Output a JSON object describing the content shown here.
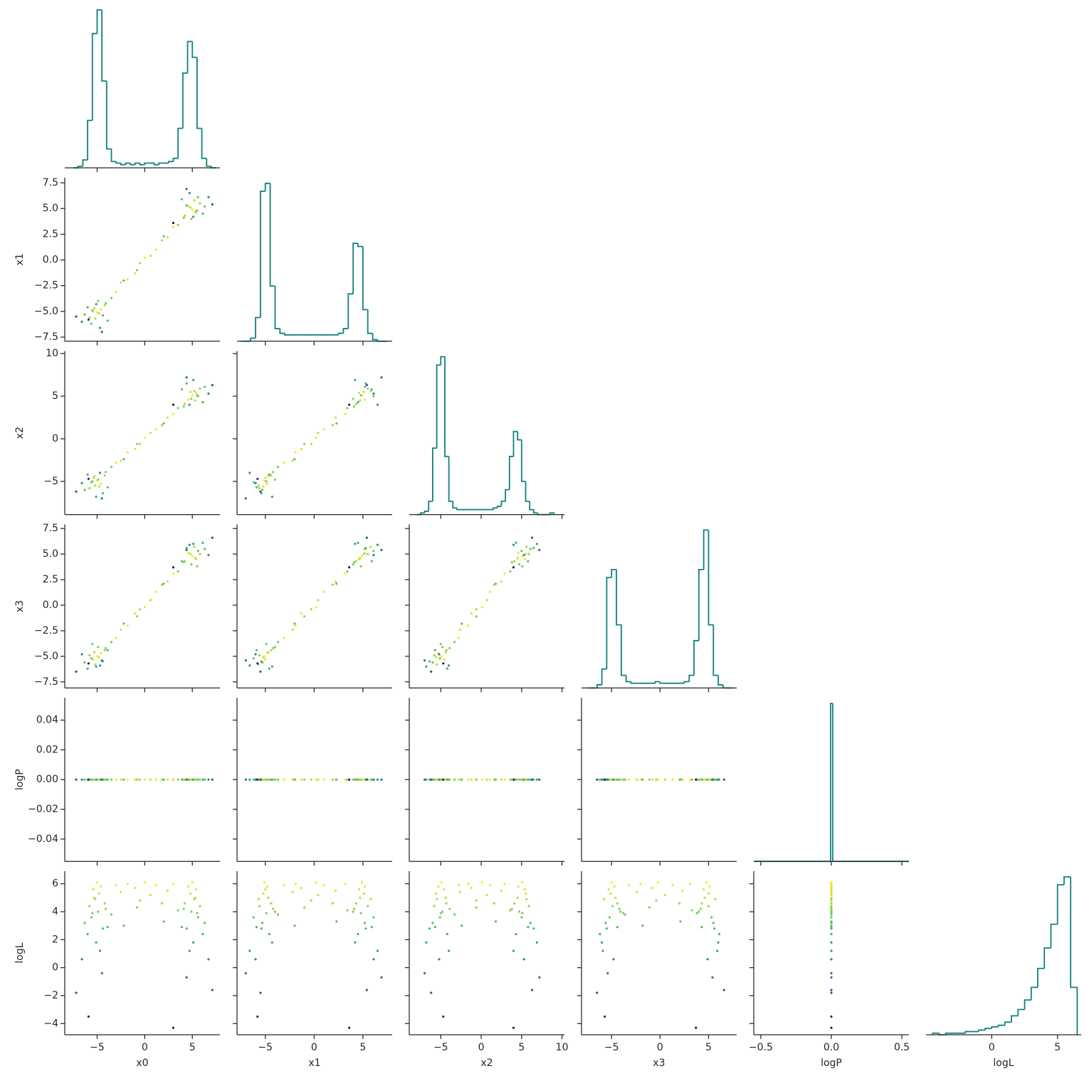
{
  "chart_data": {
    "type": "corner",
    "hist_color": "#11807f",
    "colormap": "viridis",
    "color_by": "logL",
    "variables": [
      {
        "name": "x0",
        "lim": [
          -8.4,
          7.9
        ],
        "xticks": [
          {
            "value": -5,
            "label": "−5"
          },
          0,
          5
        ],
        "yticks": [],
        "hist": {
          "bins": [
            -7.5,
            -7,
            -6.5,
            -6,
            -5.5,
            -5,
            -4.5,
            -4,
            -3.5,
            -3,
            -2.5,
            -2,
            -1.5,
            -1,
            -0.5,
            0,
            0.5,
            1,
            1.5,
            2,
            2.5,
            3,
            3.5,
            4,
            4.5,
            5,
            5.5,
            6,
            6.5,
            7,
            7.5
          ],
          "counts": [
            0,
            1,
            5,
            30,
            85,
            100,
            55,
            12,
            4,
            3,
            2,
            3,
            2,
            3,
            2,
            3,
            3,
            2,
            3,
            3,
            4,
            6,
            25,
            60,
            80,
            70,
            25,
            6,
            1,
            0
          ]
        }
      },
      {
        "name": "x1",
        "lim": [
          -7.9,
          8.0
        ],
        "xticks": [
          {
            "value": -5,
            "label": "−5"
          },
          0,
          5
        ],
        "yticks": [
          {
            "value": -7.5,
            "label": "−7.5"
          },
          {
            "value": -5,
            "label": "−5.0"
          },
          {
            "value": -2.5,
            "label": "−2.5"
          },
          {
            "value": 0,
            "label": "0.0"
          },
          2.5,
          {
            "value": 5,
            "label": "5.0"
          },
          7.5
        ],
        "hist": {
          "bins": [
            -7.5,
            -7,
            -6.5,
            -6,
            -5.5,
            -5,
            -4.5,
            -4,
            -3.5,
            -3,
            -2.5,
            -2,
            -1.5,
            -1,
            -0.5,
            0,
            0.5,
            1,
            1.5,
            2,
            2.5,
            3,
            3.5,
            4,
            4.5,
            5,
            5.5,
            6,
            6.5,
            7,
            7.5
          ],
          "counts": [
            0,
            0,
            2,
            15,
            95,
            100,
            35,
            8,
            5,
            4,
            4,
            4,
            4,
            4,
            4,
            4,
            4,
            4,
            4,
            4,
            5,
            8,
            30,
            62,
            60,
            20,
            5,
            1,
            0,
            0
          ]
        }
      },
      {
        "name": "x2",
        "lim": [
          -8.9,
          10.3
        ],
        "xticks": [
          {
            "value": -5,
            "label": "−5"
          },
          0,
          5,
          10
        ],
        "yticks": [
          {
            "value": -5,
            "label": "−5"
          },
          0,
          5,
          10
        ],
        "hist": {
          "bins": [
            -8,
            -7.5,
            -7,
            -6.5,
            -6,
            -5.5,
            -5,
            -4.5,
            -4,
            -3.5,
            -3,
            -2.5,
            -2,
            -1.5,
            -1,
            -0.5,
            0,
            0.5,
            1,
            1.5,
            2,
            2.5,
            3,
            3.5,
            4,
            4.5,
            5,
            5.5,
            6,
            6.5,
            7,
            7.5,
            8,
            8.5,
            9
          ],
          "counts": [
            0,
            1,
            2,
            8,
            40,
            90,
            95,
            35,
            8,
            4,
            3,
            3,
            3,
            3,
            3,
            3,
            3,
            3,
            3,
            4,
            5,
            8,
            15,
            35,
            50,
            45,
            20,
            8,
            3,
            1,
            0,
            0,
            0,
            1
          ]
        }
      },
      {
        "name": "x3",
        "lim": [
          -8.1,
          7.9
        ],
        "xticks": [
          {
            "value": -5,
            "label": "−5"
          },
          0,
          5
        ],
        "yticks": [
          {
            "value": -7.5,
            "label": "−7.5"
          },
          {
            "value": -5,
            "label": "−5.0"
          },
          {
            "value": -2.5,
            "label": "−2.5"
          },
          {
            "value": 0,
            "label": "0.0"
          },
          2.5,
          {
            "value": 5,
            "label": "5.0"
          },
          7.5
        ],
        "hist": {
          "bins": [
            -7.5,
            -7,
            -6.5,
            -6,
            -5.5,
            -5,
            -4.5,
            -4,
            -3.5,
            -3,
            -2.5,
            -2,
            -1.5,
            -1,
            -0.5,
            0,
            0.5,
            1,
            1.5,
            2,
            2.5,
            3,
            3.5,
            4,
            4.5,
            5,
            5.5,
            6,
            6.5,
            7,
            7.5
          ],
          "counts": [
            0,
            0,
            2,
            12,
            70,
            75,
            40,
            8,
            4,
            3,
            3,
            3,
            3,
            3,
            4,
            3,
            3,
            3,
            3,
            3,
            4,
            8,
            30,
            75,
            100,
            40,
            8,
            2,
            0,
            0
          ]
        }
      },
      {
        "name": "logP",
        "lim": [
          -0.55,
          0.55
        ],
        "xticks": [
          {
            "value": -0.5,
            "label": "−0.5"
          },
          {
            "value": 0,
            "label": "0.0"
          },
          0.5
        ],
        "ylim": [
          -0.055,
          0.055
        ],
        "yticks": [
          {
            "value": -0.04,
            "label": "−0.04"
          },
          {
            "value": -0.02,
            "label": "−0.02"
          },
          {
            "value": 0,
            "label": "0.00"
          },
          0.02,
          0.04
        ],
        "hist": {
          "bins": [
            -0.55,
            -0.005,
            0.01,
            0.55
          ],
          "counts": [
            0,
            100,
            0
          ]
        }
      },
      {
        "name": "logL",
        "lim": [
          -5.0,
          6.8
        ],
        "ylim": [
          -4.8,
          6.9
        ],
        "xticks": [
          0,
          5
        ],
        "yticks": [
          {
            "value": -4,
            "label": "−4"
          },
          {
            "value": -2,
            "label": "−2"
          },
          0,
          2,
          4,
          6
        ],
        "hist": {
          "bins": [
            -4.5,
            -4,
            -3.5,
            -3,
            -2.5,
            -2,
            -1.5,
            -1,
            -0.5,
            0,
            0.5,
            1,
            1.5,
            2,
            2.5,
            3,
            3.5,
            4,
            4.5,
            5,
            5.5,
            6,
            6.5
          ],
          "counts": [
            1,
            0,
            1,
            1,
            1,
            2,
            2,
            3,
            4,
            5,
            6,
            8,
            12,
            16,
            22,
            30,
            42,
            55,
            70,
            95,
            100,
            30
          ]
        }
      }
    ],
    "samples": {
      "x0": [
        -5.0,
        -4.6,
        -5.4,
        -5.8,
        -4.2,
        -5.2,
        -6.3,
        -4.9,
        -5.6,
        -4.4,
        -6.0,
        -3.9,
        -5.1,
        -6.6,
        -4.7,
        -5.5,
        -4.8,
        -5.3,
        -7.2,
        -4.5,
        -5.9,
        -4.1,
        5.0,
        4.6,
        5.4,
        5.8,
        4.2,
        5.2,
        6.3,
        4.9,
        5.6,
        4.4,
        6.1,
        3.9,
        5.1,
        6.7,
        4.7,
        5.5,
        4.8,
        5.3,
        7.1,
        4.4,
        3.0,
        4.1,
        -3.0,
        -2.5,
        -1.8,
        -1.0,
        -0.5,
        0.0,
        0.6,
        1.2,
        1.8,
        2.4,
        3.0,
        -3.5,
        3.5,
        -2.2,
        2.0,
        -0.8
      ],
      "x1": [
        -5.1,
        -4.8,
        -5.0,
        -5.6,
        -4.4,
        -5.7,
        -5.3,
        -4.0,
        -6.2,
        -5.4,
        -4.6,
        -5.9,
        -4.3,
        -6.0,
        -6.6,
        -4.9,
        -5.2,
        -4.7,
        -5.5,
        -7.0,
        -5.8,
        -4.2,
        4.9,
        5.2,
        4.6,
        5.5,
        4.3,
        5.8,
        5.2,
        4.0,
        6.1,
        5.3,
        4.5,
        5.9,
        4.2,
        6.1,
        6.5,
        4.8,
        5.1,
        4.7,
        5.4,
        6.9,
        3.6,
        4.1,
        -3.1,
        -2.2,
        -1.9,
        -1.3,
        -0.3,
        0.2,
        0.4,
        1.0,
        1.9,
        2.2,
        3.2,
        -3.7,
        3.4,
        -2.0,
        2.3,
        -1.0
      ],
      "x2": [
        -4.9,
        -5.3,
        -4.6,
        -5.8,
        -4.3,
        -5.5,
        -6.0,
        -4.8,
        -5.1,
        -6.4,
        -4.2,
        -5.7,
        -6.8,
        -5.2,
        -4.0,
        -5.0,
        -5.6,
        -4.4,
        -6.2,
        -7.0,
        -4.7,
        -3.9,
        5.1,
        4.6,
        5.4,
        5.9,
        4.1,
        5.6,
        6.1,
        4.7,
        5.0,
        6.5,
        4.3,
        5.8,
        6.9,
        5.3,
        4.0,
        5.1,
        5.5,
        4.5,
        6.3,
        7.2,
        4.0,
        3.8,
        -2.8,
        -2.6,
        -1.6,
        -1.2,
        -0.6,
        0.1,
        0.7,
        1.1,
        1.6,
        2.5,
        2.9,
        -3.3,
        3.6,
        -2.4,
        1.8,
        -0.6
      ],
      "x3": [
        -5.0,
        -4.7,
        -5.3,
        -4.9,
        -4.4,
        -5.8,
        -5.6,
        -4.1,
        -5.2,
        -5.5,
        -6.2,
        -4.4,
        -6.0,
        -4.8,
        -5.9,
        -3.8,
        -5.1,
        -4.6,
        -6.5,
        -5.4,
        -5.7,
        -4.2,
        4.8,
        5.1,
        4.5,
        5.0,
        4.3,
        5.7,
        5.5,
        4.0,
        5.3,
        5.6,
        6.1,
        4.3,
        6.0,
        4.9,
        5.9,
        3.8,
        5.0,
        4.6,
        6.6,
        5.4,
        3.7,
        4.2,
        -3.2,
        -2.4,
        -2.0,
        -0.8,
        -0.4,
        -0.2,
        0.5,
        1.3,
        2.0,
        2.3,
        3.1,
        -3.6,
        3.3,
        -1.8,
        2.1,
        -1.1
      ],
      "logP": [
        0,
        0,
        0,
        0,
        0,
        0,
        0,
        0,
        0,
        0,
        0,
        0,
        0,
        0,
        0,
        0,
        0,
        0,
        0,
        0,
        0,
        0,
        0,
        0,
        0,
        0,
        0,
        0,
        0,
        0,
        0,
        0,
        0,
        0,
        0,
        0,
        0,
        0,
        0,
        0,
        0,
        0,
        0,
        0,
        0,
        0,
        0,
        0,
        0,
        0,
        0,
        0,
        0,
        0,
        0,
        0,
        0,
        0,
        0,
        0
      ],
      "logL": [
        6.1,
        5.8,
        5.6,
        4.4,
        4.6,
        4.9,
        3.2,
        4.0,
        3.6,
        2.8,
        2.4,
        2.9,
        1.8,
        0.6,
        1.2,
        3.9,
        5.3,
        5.0,
        -1.8,
        -0.4,
        -3.5,
        4.2,
        6.1,
        5.8,
        5.6,
        4.4,
        4.6,
        4.9,
        3.2,
        4.0,
        3.6,
        2.8,
        2.4,
        2.9,
        1.8,
        0.6,
        1.2,
        3.9,
        5.3,
        5.0,
        -1.6,
        -0.7,
        -4.3,
        4.2,
        5.9,
        5.4,
        6.0,
        5.7,
        4.8,
        6.1,
        5.2,
        5.9,
        4.6,
        5.5,
        6.0,
        3.8,
        4.1,
        3.0,
        3.3,
        4.3
      ]
    }
  }
}
